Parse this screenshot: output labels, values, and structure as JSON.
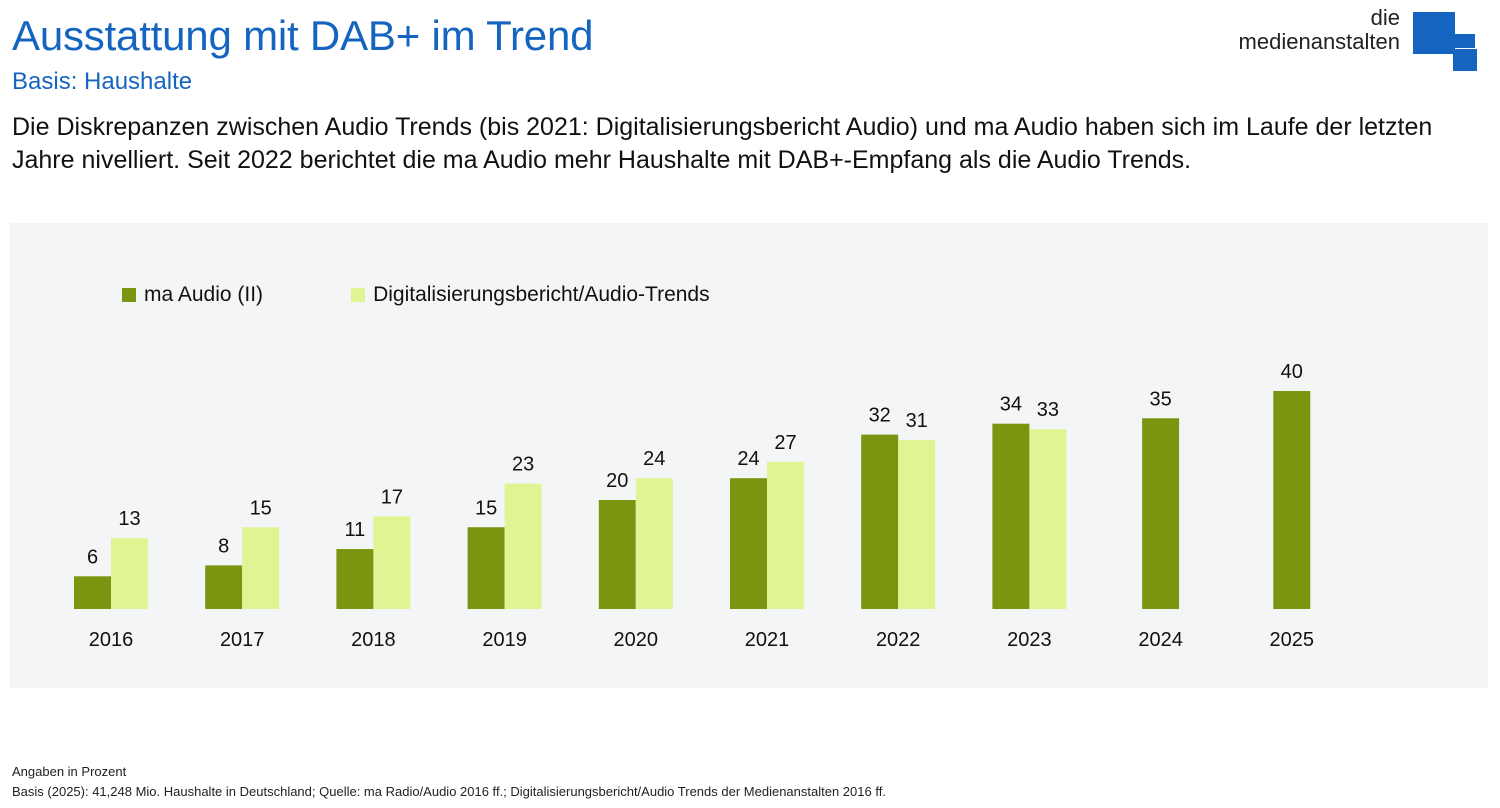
{
  "header": {
    "title": "Ausstattung mit DAB+ im Trend",
    "subtitle": "Basis: Haushalte",
    "lead": "Die Diskrepanzen zwischen Audio Trends (bis 2021: Digitalisierungsbericht Audio) und ma Audio haben sich im Laufe der letzten Jahre nivelliert. Seit 2022 berichtet die ma Audio mehr Haushalte mit DAB+-Empfang als die Audio Trends."
  },
  "logo": {
    "line1": "die",
    "line2": "medienanstalten",
    "color": "#1565c0"
  },
  "footer": {
    "note1": "Angaben in Prozent",
    "note2": "Basis (2025): 41,248 Mio. Haushalte in Deutschland; Quelle: ma Radio/Audio 2016 ff.; Digitalisierungsbericht/Audio Trends der Medienanstalten 2016 ff."
  },
  "chart_data": {
    "type": "bar",
    "title": "Ausstattung mit DAB+ im Trend",
    "xlabel": "",
    "ylabel": "Angaben in Prozent",
    "ylim": [
      0,
      45
    ],
    "grid": false,
    "legend_position": "top-left",
    "categories": [
      "2016",
      "2017",
      "2018",
      "2019",
      "2020",
      "2021",
      "2022",
      "2023",
      "2024",
      "2025"
    ],
    "series": [
      {
        "name": "ma Audio (II)",
        "color": "#7a9510",
        "values": [
          6,
          8,
          11,
          15,
          20,
          24,
          32,
          34,
          35,
          40
        ]
      },
      {
        "name": "Digitalisierungsbericht/Audio-Trends",
        "color": "#e0f494",
        "values": [
          13,
          15,
          17,
          23,
          24,
          27,
          31,
          33,
          null,
          null
        ]
      }
    ]
  }
}
